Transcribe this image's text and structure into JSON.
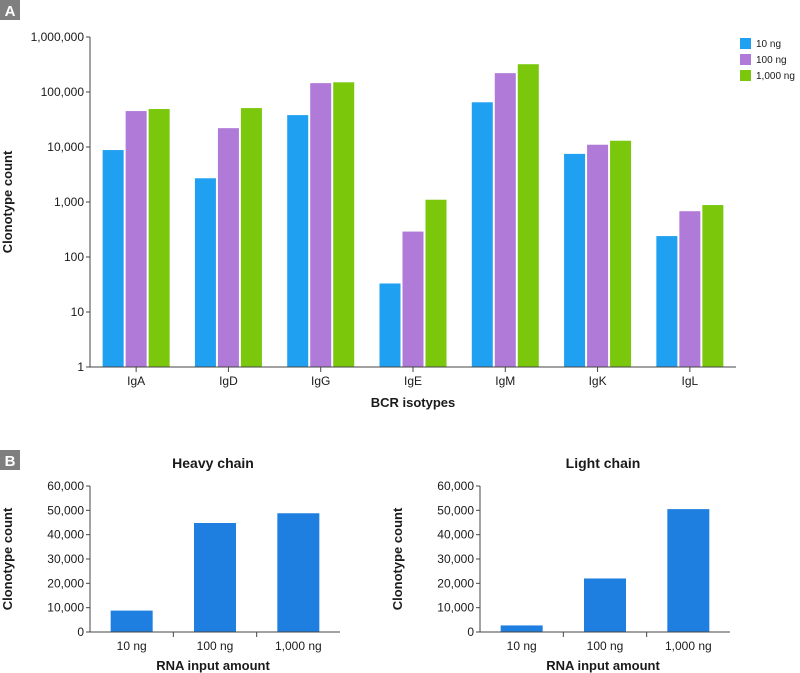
{
  "panel_labels": [
    "A",
    "B"
  ],
  "colors": {
    "series_10": "#1fa0f0",
    "series_100": "#b07ad8",
    "series_1000": "#7ac70c",
    "bar_b": "#1f7fe0",
    "axis": "#444444",
    "panel_label_bg": "#7f7f7f"
  },
  "chart_data": [
    {
      "type": "bar",
      "title": "",
      "xlabel": "BCR isotypes",
      "ylabel": "Clonotype count",
      "yscale": "log",
      "ylim": [
        1,
        1000000
      ],
      "yticks": [
        1,
        10,
        100,
        1000,
        10000,
        100000,
        1000000
      ],
      "ytick_labels": [
        "1",
        "10",
        "100",
        "1,000",
        "10,000",
        "100,000",
        "1,000,000"
      ],
      "categories": [
        "IgA",
        "IgD",
        "IgG",
        "IgE",
        "IgM",
        "IgK",
        "IgL"
      ],
      "legend_position": "top-right",
      "series": [
        {
          "name": "10 ng",
          "color": "#1fa0f0",
          "values": [
            8800,
            2700,
            38000,
            33,
            65000,
            7500,
            240
          ]
        },
        {
          "name": "100 ng",
          "color": "#b07ad8",
          "values": [
            45000,
            22000,
            145000,
            290,
            220000,
            11000,
            680
          ]
        },
        {
          "name": "1,000 ng",
          "color": "#7ac70c",
          "values": [
            49000,
            51000,
            150000,
            1100,
            320000,
            13000,
            880
          ]
        }
      ]
    },
    {
      "type": "bar",
      "title": "Heavy chain",
      "xlabel": "RNA input amount",
      "ylabel": "Clonotype count",
      "ylim": [
        0,
        60000
      ],
      "yticks": [
        0,
        10000,
        20000,
        30000,
        40000,
        50000,
        60000
      ],
      "ytick_labels": [
        "0",
        "10,000",
        "20,000",
        "30,000",
        "40,000",
        "50,000",
        "60,000"
      ],
      "categories": [
        "10 ng",
        "100 ng",
        "1,000 ng"
      ],
      "values": [
        8800,
        44800,
        48800
      ]
    },
    {
      "type": "bar",
      "title": "Light chain",
      "xlabel": "RNA input amount",
      "ylabel": "Clonotype count",
      "ylim": [
        0,
        60000
      ],
      "yticks": [
        0,
        10000,
        20000,
        30000,
        40000,
        50000,
        60000
      ],
      "ytick_labels": [
        "0",
        "10,000",
        "20,000",
        "30,000",
        "40,000",
        "50,000",
        "60,000"
      ],
      "categories": [
        "10 ng",
        "100 ng",
        "1,000 ng"
      ],
      "values": [
        2700,
        22000,
        50500
      ]
    }
  ]
}
